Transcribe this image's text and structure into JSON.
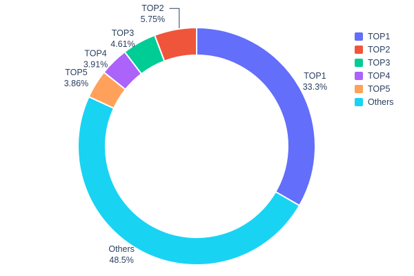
{
  "chart_data": {
    "type": "pie",
    "subtype": "donut",
    "title": "",
    "labels": [
      "TOP1",
      "TOP2",
      "TOP3",
      "TOP4",
      "TOP5",
      "Others"
    ],
    "values": [
      33.3,
      5.75,
      4.61,
      3.91,
      3.86,
      48.5
    ],
    "percent_labels": [
      "33.3%",
      "5.75%",
      "4.61%",
      "3.91%",
      "3.86%",
      "48.5%"
    ],
    "colors": [
      "#636efa",
      "#ef553b",
      "#00cc96",
      "#ab63fa",
      "#ffa15a",
      "#19d3f3"
    ],
    "hole": 0.77,
    "direction": "clockwise",
    "start_angle_deg": 0,
    "draw_order": [
      0,
      5,
      4,
      3,
      2,
      1
    ],
    "slice_border_color": "#ffffff",
    "label_color": "#2a3f5f",
    "leader_lines": [
      false,
      true,
      false,
      false,
      false,
      false
    ],
    "background": "#ffffff",
    "legend": {
      "position": "right",
      "entries": [
        "TOP1",
        "TOP2",
        "TOP3",
        "TOP4",
        "TOP5",
        "Others"
      ]
    }
  }
}
